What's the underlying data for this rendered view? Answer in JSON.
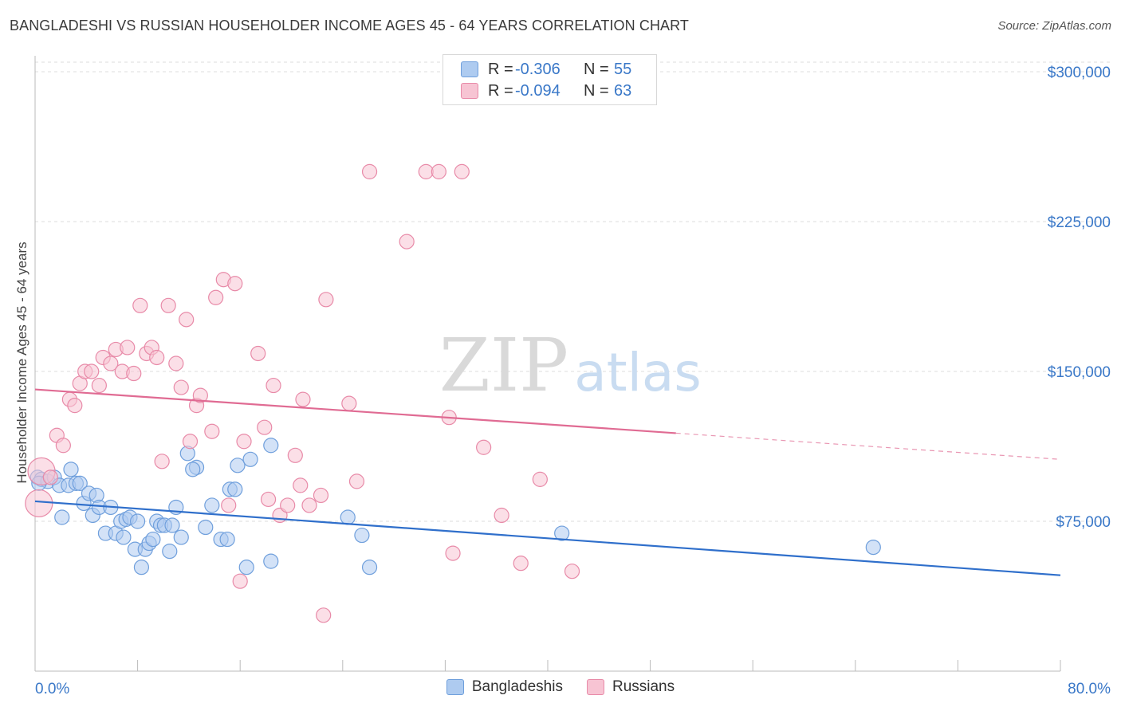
{
  "title": "BANGLADESHI VS RUSSIAN HOUSEHOLDER INCOME AGES 45 - 64 YEARS CORRELATION CHART",
  "source": "Source: ZipAtlas.com",
  "watermark": {
    "zip": "ZIP",
    "atlas": "atlas"
  },
  "legend_top": {
    "rows": [
      {
        "r_label": "R =",
        "r_value": "-0.306",
        "n_label": "N =",
        "n_value": "55",
        "fill": "#aecbf0",
        "stroke": "#6f9fdc"
      },
      {
        "r_label": "R =",
        "r_value": "-0.094",
        "n_label": "N =",
        "n_value": "63",
        "fill": "#f7c4d3",
        "stroke": "#e88aa8"
      }
    ]
  },
  "legend_bottom": [
    {
      "label": "Bangladeshis",
      "fill": "#aecbf0",
      "stroke": "#6f9fdc"
    },
    {
      "label": "Russians",
      "fill": "#f7c4d3",
      "stroke": "#e88aa8"
    }
  ],
  "chart_data": {
    "type": "scatter",
    "title": "BANGLADESHI VS RUSSIAN HOUSEHOLDER INCOME AGES 45 - 64 YEARS CORRELATION CHART",
    "xlabel": "",
    "ylabel": "Householder Income Ages 45 - 64 years",
    "xlim": [
      0,
      80
    ],
    "ylim": [
      0,
      308000
    ],
    "x_tick_labels": [
      "0.0%",
      "80.0%"
    ],
    "y_ticks": [
      {
        "value": 75000,
        "label": "$75,000"
      },
      {
        "value": 150000,
        "label": "$150,000"
      },
      {
        "value": 225000,
        "label": "$225,000"
      },
      {
        "value": 300000,
        "label": "$300,000"
      }
    ],
    "grid": true,
    "series": [
      {
        "name": "Bangladeshis",
        "color": "#6f9fdc",
        "fill": "#aecbf0",
        "line_color": "#2f6fcb",
        "trend": {
          "x0": 0,
          "y0": 85000,
          "x1": 80,
          "y1": 48000,
          "solid_until": 80
        },
        "points": [
          [
            0.2,
            97000
          ],
          [
            0.5,
            96000
          ],
          [
            1.0,
            95000
          ],
          [
            1.5,
            97000
          ],
          [
            1.9,
            93000
          ],
          [
            2.1,
            77000
          ],
          [
            2.6,
            93000
          ],
          [
            2.8,
            101000
          ],
          [
            3.2,
            94000
          ],
          [
            3.5,
            94000
          ],
          [
            3.8,
            84000
          ],
          [
            4.2,
            89000
          ],
          [
            4.5,
            78000
          ],
          [
            4.8,
            88000
          ],
          [
            5.0,
            82000
          ],
          [
            5.5,
            69000
          ],
          [
            5.9,
            82000
          ],
          [
            6.3,
            69000
          ],
          [
            6.7,
            75000
          ],
          [
            6.9,
            67000
          ],
          [
            7.1,
            76000
          ],
          [
            7.4,
            77000
          ],
          [
            7.8,
            61000
          ],
          [
            8.0,
            75000
          ],
          [
            8.3,
            52000
          ],
          [
            8.6,
            61000
          ],
          [
            8.9,
            64000
          ],
          [
            9.2,
            66000
          ],
          [
            9.5,
            75000
          ],
          [
            9.8,
            73000
          ],
          [
            10.1,
            73000
          ],
          [
            10.5,
            60000
          ],
          [
            10.7,
            73000
          ],
          [
            11.0,
            82000
          ],
          [
            11.4,
            67000
          ],
          [
            11.9,
            109000
          ],
          [
            12.6,
            102000
          ],
          [
            12.3,
            101000
          ],
          [
            13.3,
            72000
          ],
          [
            13.8,
            83000
          ],
          [
            14.5,
            66000
          ],
          [
            15.0,
            66000
          ],
          [
            15.2,
            91000
          ],
          [
            15.6,
            91000
          ],
          [
            15.8,
            103000
          ],
          [
            16.5,
            52000
          ],
          [
            16.8,
            106000
          ],
          [
            18.4,
            113000
          ],
          [
            18.4,
            55000
          ],
          [
            24.4,
            77000
          ],
          [
            25.5,
            68000
          ],
          [
            26.1,
            52000
          ],
          [
            41.1,
            69000
          ],
          [
            65.4,
            62000
          ],
          [
            0.3,
            94000
          ]
        ]
      },
      {
        "name": "Russians",
        "color": "#e88aa8",
        "fill": "#f7c4d3",
        "line_color": "#e06b93",
        "trend": {
          "x0": 0,
          "y0": 141000,
          "x1": 80,
          "y1": 106000,
          "solid_until": 50
        },
        "points": [
          [
            0.3,
            84000
          ],
          [
            0.5,
            100000
          ],
          [
            1.2,
            97000
          ],
          [
            1.7,
            118000
          ],
          [
            2.2,
            113000
          ],
          [
            2.7,
            136000
          ],
          [
            3.1,
            133000
          ],
          [
            3.5,
            144000
          ],
          [
            3.9,
            150000
          ],
          [
            4.4,
            150000
          ],
          [
            5.0,
            143000
          ],
          [
            5.3,
            157000
          ],
          [
            5.9,
            154000
          ],
          [
            6.3,
            161000
          ],
          [
            6.8,
            150000
          ],
          [
            7.2,
            162000
          ],
          [
            7.7,
            149000
          ],
          [
            8.2,
            183000
          ],
          [
            8.7,
            159000
          ],
          [
            9.1,
            162000
          ],
          [
            9.5,
            157000
          ],
          [
            9.9,
            105000
          ],
          [
            10.4,
            183000
          ],
          [
            11.0,
            154000
          ],
          [
            11.4,
            142000
          ],
          [
            11.8,
            176000
          ],
          [
            12.1,
            115000
          ],
          [
            12.6,
            133000
          ],
          [
            12.9,
            138000
          ],
          [
            13.8,
            120000
          ],
          [
            14.1,
            187000
          ],
          [
            14.7,
            196000
          ],
          [
            15.1,
            83000
          ],
          [
            15.6,
            194000
          ],
          [
            16.0,
            45000
          ],
          [
            16.3,
            115000
          ],
          [
            17.4,
            159000
          ],
          [
            17.9,
            122000
          ],
          [
            18.2,
            86000
          ],
          [
            18.6,
            143000
          ],
          [
            19.1,
            78000
          ],
          [
            19.7,
            83000
          ],
          [
            20.3,
            108000
          ],
          [
            20.7,
            93000
          ],
          [
            20.9,
            136000
          ],
          [
            21.4,
            83000
          ],
          [
            22.3,
            88000
          ],
          [
            22.5,
            28000
          ],
          [
            22.7,
            186000
          ],
          [
            24.5,
            134000
          ],
          [
            25.1,
            95000
          ],
          [
            26.1,
            250000
          ],
          [
            29.0,
            215000
          ],
          [
            30.5,
            250000
          ],
          [
            31.5,
            250000
          ],
          [
            32.3,
            127000
          ],
          [
            32.6,
            59000
          ],
          [
            33.3,
            250000
          ],
          [
            35.0,
            112000
          ],
          [
            36.4,
            78000
          ],
          [
            37.9,
            54000
          ],
          [
            39.4,
            96000
          ],
          [
            41.9,
            50000
          ]
        ]
      }
    ]
  }
}
